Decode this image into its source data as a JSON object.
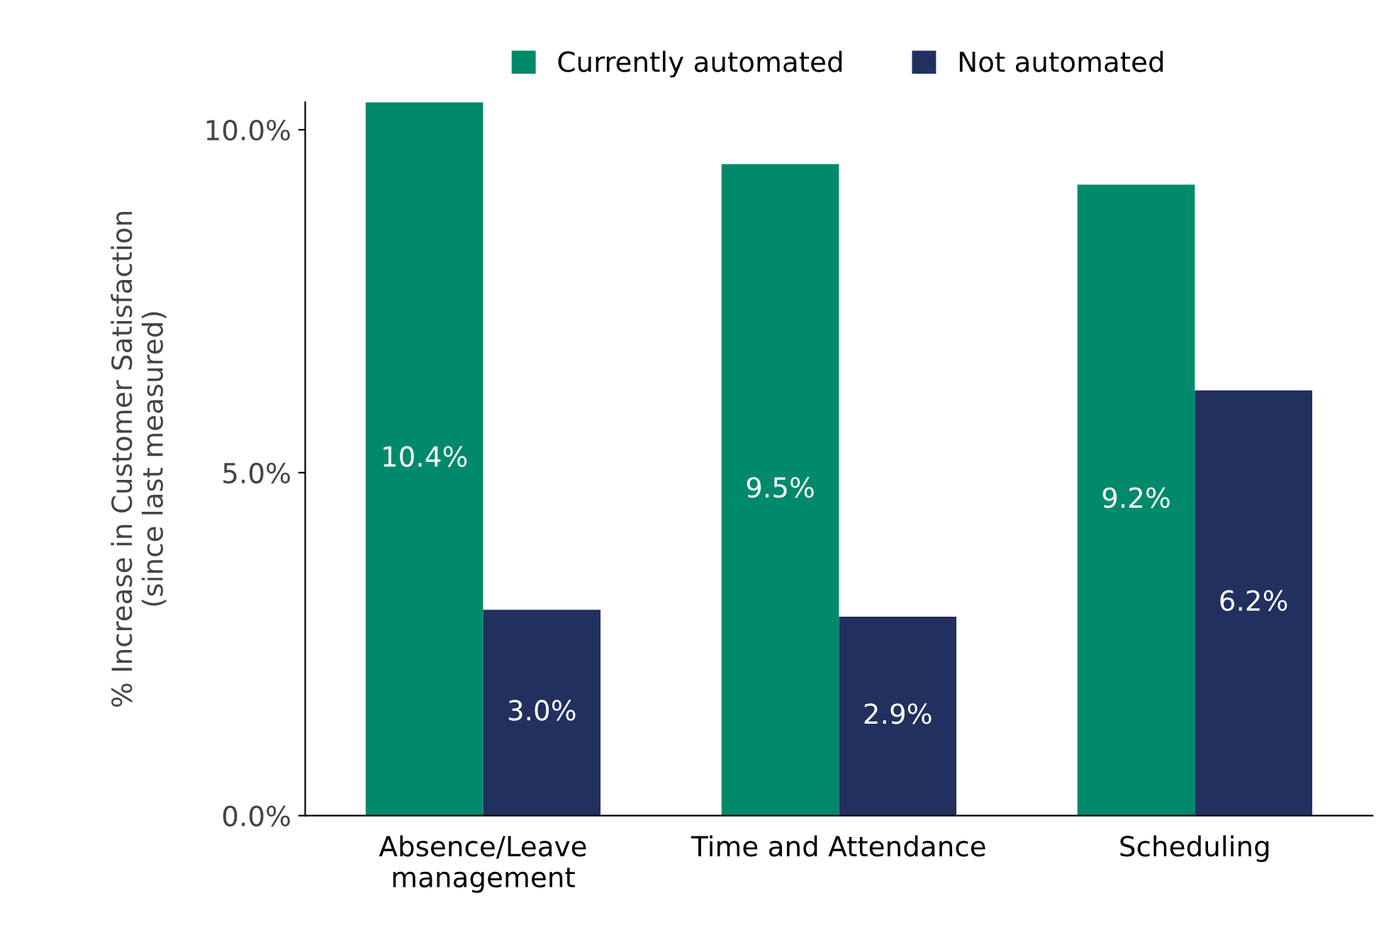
{
  "chart_data": {
    "type": "bar",
    "ylabel": "% Increase in Customer Satisfaction\n(since last measured)",
    "categories": [
      "Absence/Leave\nmanagement",
      "Time and Attendance",
      "Scheduling"
    ],
    "series": [
      {
        "name": "Currently automated",
        "color": "#00896b",
        "values": [
          10.4,
          9.5,
          9.2
        ],
        "value_labels": [
          "10.4%",
          "9.5%",
          "9.2%"
        ]
      },
      {
        "name": "Not automated",
        "color": "#22305f",
        "values": [
          3.0,
          2.9,
          6.2
        ],
        "value_labels": [
          "3.0%",
          "2.9%",
          "6.2%"
        ]
      }
    ],
    "ylim": [
      0,
      10.4
    ],
    "yticks": [
      {
        "value": 0,
        "label": "0.0%"
      },
      {
        "value": 5,
        "label": "5.0%"
      },
      {
        "value": 10,
        "label": "10.0%"
      }
    ],
    "grid": false,
    "legend": "top"
  }
}
